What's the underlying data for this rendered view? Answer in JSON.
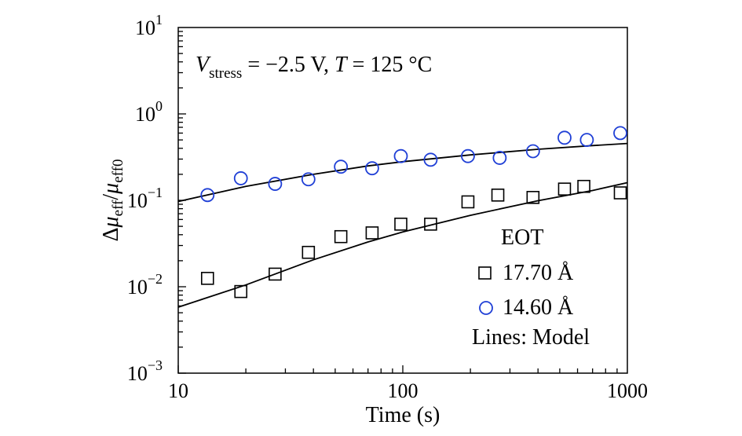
{
  "chart_data": {
    "type": "scatter",
    "xlabel": "Time (s)",
    "ylabel": {
      "delta": "Δ",
      "mu1": "μ",
      "sub1": "eff",
      "slash": "/",
      "mu2": "μ",
      "sub2": "eff0"
    },
    "x_scale": "log",
    "y_scale": "log",
    "xlim": [
      10,
      1000
    ],
    "ylim": [
      0.001,
      10
    ],
    "x_ticks": [
      {
        "value": 10,
        "label": "10"
      },
      {
        "value": 100,
        "label": "100"
      },
      {
        "value": 1000,
        "label": "1000"
      }
    ],
    "y_ticks": [
      {
        "value": 10,
        "base": "10",
        "exp": "1"
      },
      {
        "value": 1,
        "base": "10",
        "exp": "0"
      },
      {
        "value": 0.1,
        "base": "10",
        "exp": "−1"
      },
      {
        "value": 0.01,
        "base": "10",
        "exp": "−2"
      },
      {
        "value": 0.001,
        "base": "10",
        "exp": "−3"
      }
    ],
    "annotation": {
      "v": "V",
      "v_sub": "stress",
      "mid": " = −2.5 V, ",
      "t": "T",
      "end": " = 125 °C"
    },
    "legend": {
      "title": "EOT",
      "footer": "Lines: Model",
      "placement": "lower-right"
    },
    "series": [
      {
        "name": "17.70 Å",
        "marker": "square",
        "color": "#000000",
        "points": [
          [
            13.5,
            0.0125
          ],
          [
            19,
            0.0088
          ],
          [
            27,
            0.014
          ],
          [
            38,
            0.025
          ],
          [
            53,
            0.038
          ],
          [
            73,
            0.042
          ],
          [
            98,
            0.053
          ],
          [
            133,
            0.053
          ],
          [
            195,
            0.096
          ],
          [
            265,
            0.115
          ],
          [
            380,
            0.108
          ],
          [
            525,
            0.135
          ],
          [
            640,
            0.145
          ],
          [
            930,
            0.122
          ]
        ]
      },
      {
        "name": "14.60 Å",
        "marker": "circle",
        "color": "#1f3fd6",
        "points": [
          [
            13.5,
            0.115
          ],
          [
            19,
            0.18
          ],
          [
            27,
            0.155
          ],
          [
            38,
            0.175
          ],
          [
            53,
            0.245
          ],
          [
            73,
            0.235
          ],
          [
            98,
            0.325
          ],
          [
            133,
            0.295
          ],
          [
            195,
            0.325
          ],
          [
            270,
            0.31
          ],
          [
            380,
            0.37
          ],
          [
            525,
            0.53
          ],
          [
            660,
            0.5
          ],
          [
            930,
            0.6
          ]
        ]
      }
    ],
    "model_lines": [
      {
        "points": [
          [
            10,
            0.0058
          ],
          [
            20,
            0.0105
          ],
          [
            40,
            0.0205
          ],
          [
            70,
            0.033
          ],
          [
            100,
            0.043
          ],
          [
            200,
            0.067
          ],
          [
            400,
            0.099
          ],
          [
            700,
            0.13
          ],
          [
            1000,
            0.16
          ]
        ]
      },
      {
        "points": [
          [
            10,
            0.097
          ],
          [
            20,
            0.145
          ],
          [
            40,
            0.2
          ],
          [
            70,
            0.25
          ],
          [
            100,
            0.28
          ],
          [
            200,
            0.335
          ],
          [
            400,
            0.39
          ],
          [
            700,
            0.43
          ],
          [
            1000,
            0.455
          ]
        ]
      }
    ]
  }
}
